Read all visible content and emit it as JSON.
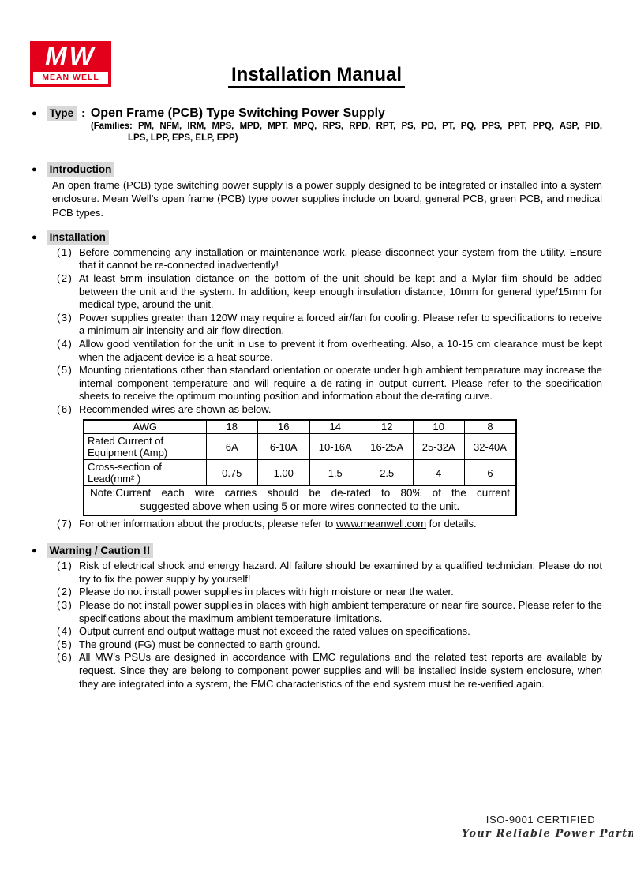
{
  "logo": {
    "mark": "MW",
    "brand": "MEAN WELL"
  },
  "title": "Installation Manual",
  "type_section": {
    "bullet": "●",
    "label": "Type",
    "colon": ":",
    "heading": "Open Frame (PCB) Type Switching Power Supply",
    "families_line1": "(Families: PM, NFM, IRM, MPS, MPD, MPT, MPQ, RPS, RPD, RPT, PS, PD, PT, PQ, PPS, PPT, PPQ, ASP, PID,",
    "families_line2": "LPS, LPP, EPS, ELP, EPP)"
  },
  "introduction": {
    "bullet": "●",
    "heading": "Introduction",
    "body": "An open frame (PCB) type switching power supply is a power supply designed to be integrated or installed into a system enclosure. Mean Well’s open frame (PCB) type power supplies include on board, general PCB, green PCB, and medical PCB types."
  },
  "installation": {
    "bullet": "●",
    "heading": "Installation",
    "items": [
      {
        "marker": "(1)",
        "text": "Before commencing any installation or maintenance work, please disconnect your system from the utility. Ensure that it cannot be re-connected inadvertently!"
      },
      {
        "marker": "(2)",
        "text": "At least 5mm insulation distance on the bottom of the unit should be kept and a Mylar film should be added between the unit and the system. In addition, keep enough insulation distance, 10mm for general type/15mm for medical type, around the unit."
      },
      {
        "marker": "(3)",
        "text": "Power supplies greater than 120W may require a forced air/fan for cooling. Please refer to specifications to receive a minimum air intensity and air-flow direction."
      },
      {
        "marker": "(4)",
        "text": "Allow good ventilation for the unit in use to prevent it from overheating. Also, a 10-15 cm clearance must be kept when the adjacent device is a heat source."
      },
      {
        "marker": "(5)",
        "text": "Mounting orientations other than standard orientation or operate under high ambient temperature may increase the internal component temperature and will require a de-rating in output current. Please refer to the specification sheets to receive the optimum mounting position and information about the de-rating curve."
      },
      {
        "marker": "(6)",
        "text": "Recommended wires are shown as below."
      }
    ],
    "item7": {
      "marker": "(7)",
      "pre": "For other information about the products, please refer to ",
      "link": "www.meanwell.com",
      "post": " for details."
    }
  },
  "wire_table": {
    "header": [
      "AWG",
      "18",
      "16",
      "14",
      "12",
      "10",
      "8"
    ],
    "rows": [
      {
        "label": "Rated Current of Equipment (Amp)",
        "values": [
          "6A",
          "6-10A",
          "10-16A",
          "16-25A",
          "25-32A",
          "32-40A"
        ]
      },
      {
        "label": "Cross-section of Lead(mm² )",
        "values": [
          "0.75",
          "1.00",
          "1.5",
          "2.5",
          "4",
          "6"
        ]
      }
    ],
    "note_line1": "Note:Current each wire carries should be de-rated to 80% of the current",
    "note_line2": "suggested above when using 5 or more wires connected to the unit."
  },
  "warning": {
    "bullet": "●",
    "heading": "Warning / Caution !!",
    "items": [
      {
        "marker": "(1)",
        "text": "Risk of electrical shock and energy hazard. All failure should be examined by a qualified technician. Please do not try to fix the power supply by yourself!"
      },
      {
        "marker": "(2)",
        "text": "Please do not install power supplies in places with high moisture or near the water."
      },
      {
        "marker": "(3)",
        "text": "Please do not install power supplies in places with high ambient temperature or near fire source. Please refer to the specifications about the maximum ambient temperature limitations."
      },
      {
        "marker": "(4)",
        "text": "Output current and output wattage must not exceed the rated values on specifications."
      },
      {
        "marker": "(5)",
        "text": "The ground (FG) must be connected to earth ground."
      },
      {
        "marker": "(6)",
        "text": "All MW’s PSUs are designed in accordance with EMC regulations and the related test reports are available by request. Since they are belong to component power supplies and will be installed inside system enclosure, when they are integrated into a system, the EMC characteristics of the end system must be re-verified again."
      }
    ]
  },
  "footer": {
    "certification": "ISO-9001 CERTIFIED",
    "slogan": "Your Reliable Power Partner"
  },
  "colors": {
    "logo_red": "#e2001a",
    "highlight_gray": "#d8d8d8"
  }
}
